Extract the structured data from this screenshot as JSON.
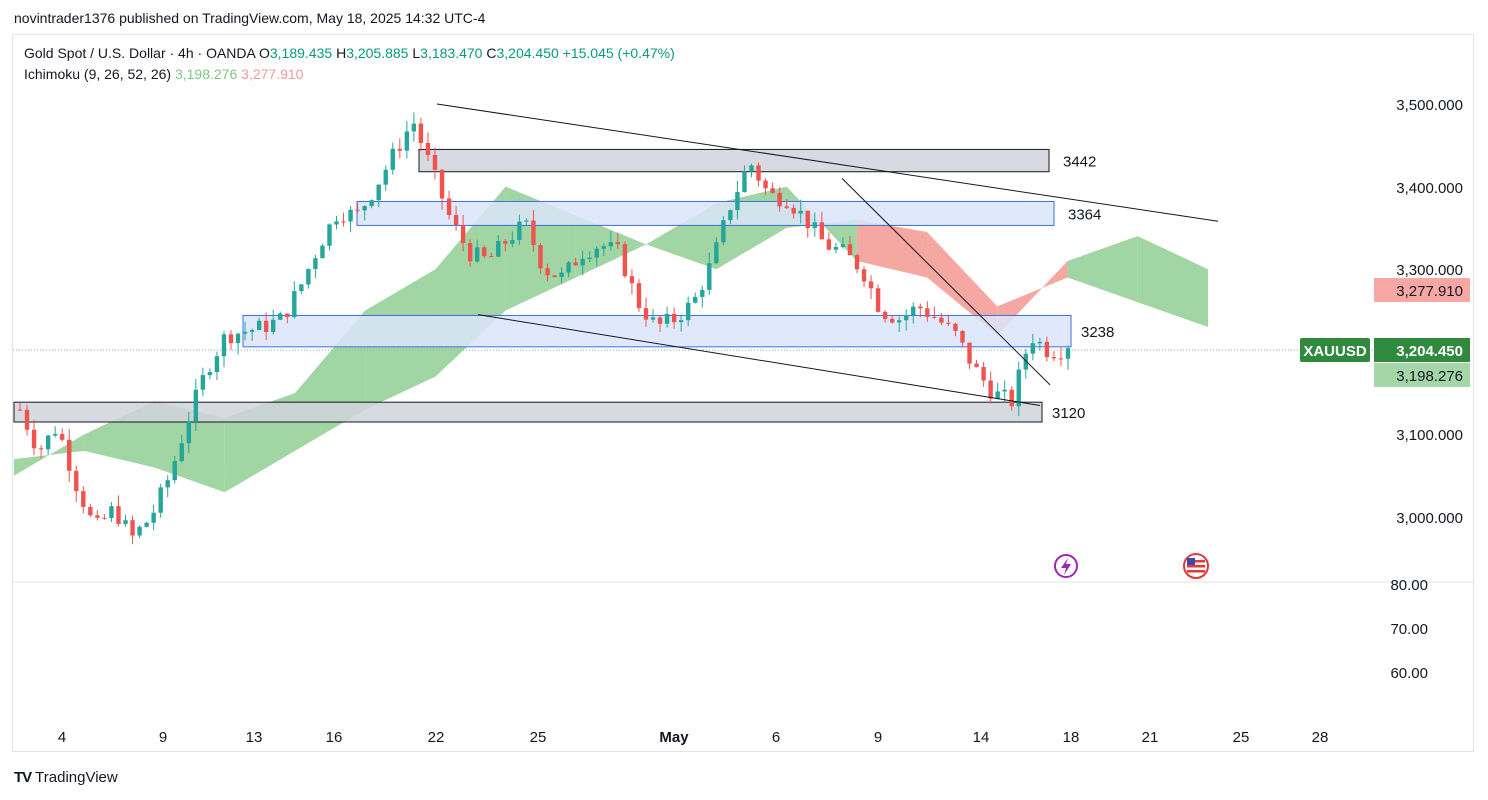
{
  "header": {
    "published": "novintrader1376 published on TradingView.com, May 18, 2025 14:32 UTC-4"
  },
  "legend": {
    "symbol": "Gold Spot / U.S. Dollar · 4h · OANDA",
    "o_label": "O",
    "o_value": "3,189.435",
    "h_label": "H",
    "h_value": "3,205.885",
    "l_label": "L",
    "l_value": "3,183.470",
    "c_label": "C",
    "c_value": "3,204.450",
    "change": "+15.045 (+0.47%)",
    "indicator": "Ichimoku (9, 26, 52, 26)",
    "ind_value_1": "3,198.276",
    "ind_value_2": "3,277.910"
  },
  "price_axis": {
    "ticks": [
      "3,500.000",
      "3,400.000",
      "3,300.000",
      "3,100.000",
      "3,000.000"
    ],
    "symbol_tag": "XAUUSD",
    "last_price": "3,204.450",
    "lagging_value": "3,198.276",
    "cloud_value": "3,277.910"
  },
  "osc_axis": {
    "ticks": [
      "80.00",
      "70.00",
      "60.00"
    ]
  },
  "time_axis": {
    "ticks": [
      "4",
      "9",
      "13",
      "16",
      "22",
      "25",
      "May",
      "6",
      "9",
      "14",
      "18",
      "21",
      "25",
      "28"
    ]
  },
  "zones": [
    {
      "label": "3442",
      "low": 3418,
      "high": 3445,
      "color": "#d1d4dc"
    },
    {
      "label": "3364",
      "low": 3353,
      "high": 3382,
      "color": "#dbe5fb"
    },
    {
      "label": "3238",
      "low": 3206,
      "high": 3244,
      "color": "#dbe5fb"
    },
    {
      "label": "3120",
      "low": 3115,
      "high": 3139,
      "color": "#d1d4dc"
    }
  ],
  "footer": {
    "brand": "TradingView",
    "brand_mark": "TV"
  },
  "colors": {
    "up": "#26a69a",
    "down": "#ef5350",
    "cloud_up": "#81c784",
    "cloud_down": "#f28b82",
    "accent": "#2f8a3e"
  },
  "chart_data": {
    "type": "candlestick",
    "title": "Gold Spot / U.S. Dollar · 4h · OANDA",
    "xlabel": "",
    "ylabel": "",
    "ylim": [
      2950,
      3530
    ],
    "x_ticks": [
      "4",
      "9",
      "13",
      "16",
      "22",
      "25",
      "May",
      "6",
      "9",
      "14",
      "18",
      "21",
      "25",
      "28"
    ],
    "price_path": [
      3130,
      3080,
      3110,
      3040,
      2985,
      3010,
      2975,
      3000,
      3050,
      3120,
      3180,
      3220,
      3225,
      3230,
      3240,
      3280,
      3330,
      3370,
      3365,
      3400,
      3440,
      3480,
      3420,
      3360,
      3320,
      3310,
      3335,
      3355,
      3300,
      3290,
      3320,
      3330,
      3320,
      3260,
      3230,
      3240,
      3260,
      3310,
      3380,
      3430,
      3390,
      3385,
      3360,
      3330,
      3320,
      3300,
      3250,
      3240,
      3255,
      3240,
      3220,
      3180,
      3150,
      3140,
      3220,
      3200,
      3204
    ],
    "cloud_a": [
      3050,
      3100,
      3140,
      3120,
      3150,
      3250,
      3300,
      3400,
      3365,
      3330,
      3380,
      3400,
      3310,
      3290,
      3220,
      3310,
      3340,
      3300
    ],
    "cloud_b": [
      3070,
      3080,
      3060,
      3030,
      3080,
      3130,
      3170,
      3250,
      3290,
      3330,
      3300,
      3350,
      3360,
      3345,
      3255,
      3290,
      3260,
      3230
    ],
    "trendlines": [
      {
        "from": "Apr 22",
        "to": "May 24",
        "y1": 3500,
        "y2": 3358
      },
      {
        "from": "Apr 22",
        "to": "May 16",
        "y1": 3245,
        "y2": 3135
      },
      {
        "from": "May 8",
        "to": "May 17",
        "y1": 3410,
        "y2": 3160
      }
    ],
    "grid": false,
    "last": 3204.45
  }
}
